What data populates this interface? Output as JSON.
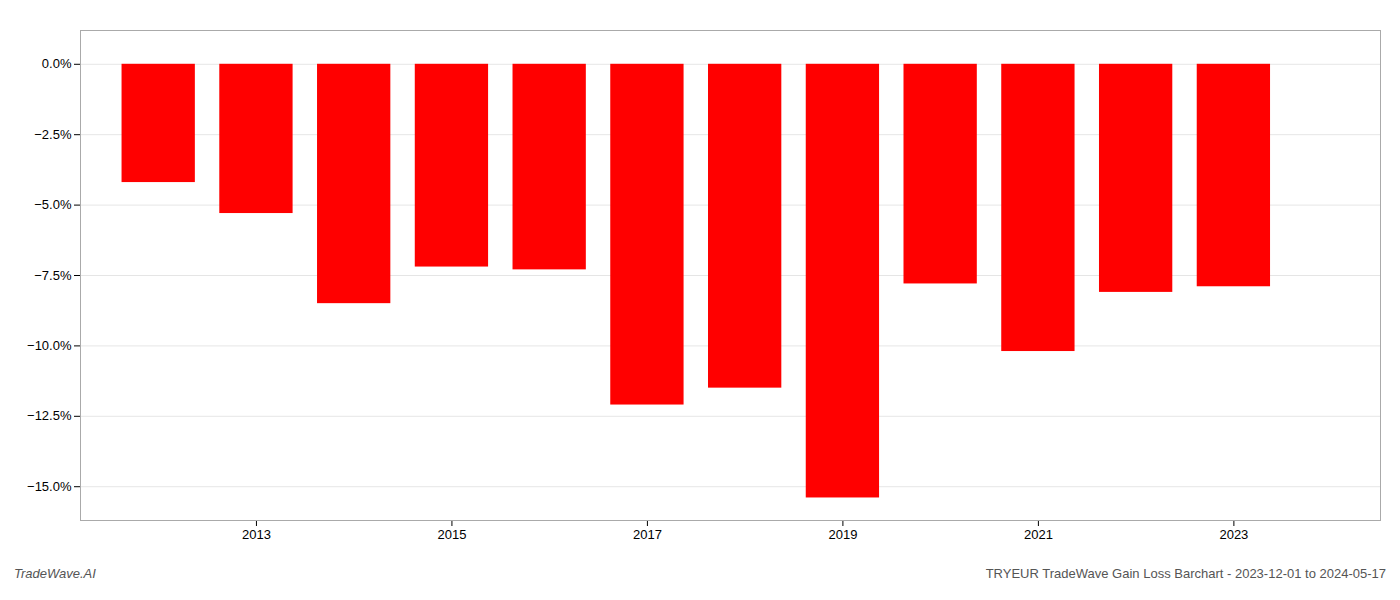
{
  "chart_data": {
    "type": "bar",
    "x": [
      2012,
      2013,
      2014,
      2015,
      2016,
      2017,
      2018,
      2019,
      2020,
      2021,
      2022,
      2023
    ],
    "values": [
      -4.2,
      -5.3,
      -8.5,
      -7.2,
      -7.3,
      -12.1,
      -11.5,
      -15.4,
      -7.8,
      -10.2,
      -8.1,
      -7.9
    ],
    "color": "#FF0000",
    "xlim": [
      2011.2,
      2024.5
    ],
    "xticks": [
      2013,
      2015,
      2017,
      2019,
      2021,
      2023
    ],
    "ylim": [
      -16.2,
      1.2
    ],
    "yticks": [
      {
        "value": 0.0,
        "label": "0.0%"
      },
      {
        "value": -2.5,
        "label": "−2.5%"
      },
      {
        "value": -5.0,
        "label": "−5.0%"
      },
      {
        "value": -7.5,
        "label": "−7.5%"
      },
      {
        "value": -10.0,
        "label": "−10.0%"
      },
      {
        "value": -12.5,
        "label": "−12.5%"
      },
      {
        "value": -15.0,
        "label": "−15.0%"
      }
    ],
    "grid": true,
    "annotations": [
      "TradeWave.AI",
      "TRYEUR TradeWave Gain Loss Barchart - 2023-12-01 to 2024-05-17"
    ]
  }
}
